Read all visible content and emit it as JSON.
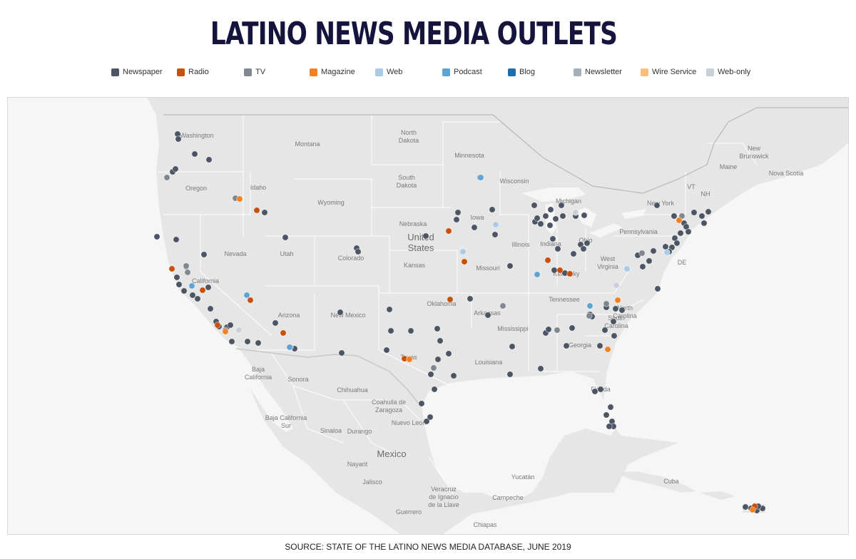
{
  "title": "LATINO NEWS MEDIA OUTLETS",
  "source": "SOURCE: STATE OF THE LATINO NEWS MEDIA DATABASE, JUNE 2019",
  "legend": [
    {
      "label": "Newspaper",
      "color": "#4c5563"
    },
    {
      "label": "Radio",
      "color": "#c8500a"
    },
    {
      "label": "TV",
      "color": "#7f8791"
    },
    {
      "label": "Magazine",
      "color": "#f48120"
    },
    {
      "label": "Web",
      "color": "#a9cbe6"
    },
    {
      "label": "Podcast",
      "color": "#5da4d4"
    },
    {
      "label": "Blog",
      "color": "#1f6eab"
    },
    {
      "label": "Newsletter",
      "color": "#a4afb9"
    },
    {
      "label": "Wire Service",
      "color": "#fcbd7d"
    },
    {
      "label": "Web-only",
      "color": "#c9d0d8"
    }
  ],
  "map_labels": {
    "states": [
      "Washington",
      "Oregon",
      "Idaho",
      "Montana",
      "North Dakota",
      "Minnesota",
      "Wisconsin",
      "South Dakota",
      "Wyoming",
      "Nevada",
      "Utah",
      "Colorado",
      "Nebraska",
      "Iowa",
      "Illinois",
      "Indiana",
      "Ohio",
      "Michigan",
      "New York",
      "Pennsylvania",
      "California",
      "Kansas",
      "Missouri",
      "West Virginia",
      "Arizona",
      "New Mexico",
      "Oklahoma",
      "Arkansas",
      "Tennessee",
      "Kentucky",
      "North Carolina",
      "South Carolina",
      "Georgia",
      "Mississippi",
      "Texas",
      "Louisiana",
      "Florida",
      "Maine",
      "VT",
      "NH",
      "New Brunswick",
      "Nova Scotia",
      "DE"
    ],
    "countries": [
      "United States",
      "Mexico"
    ],
    "mexico": [
      "Baja California",
      "Sonora",
      "Chihuahua",
      "Coahuila de Zaragoza",
      "Baja California Sur",
      "Sinaloa",
      "Durango",
      "Nuevo León",
      "Nayarit",
      "Jalisco",
      "Veracruz de Ignacio de la Llave",
      "Yucatán",
      "Campeche",
      "Guerrero",
      "Chiapas",
      "Cuba"
    ]
  },
  "outlets": [
    {
      "t": "Newspaper",
      "p": [
        [
          248,
          187
        ],
        [
          249,
          194
        ],
        [
          272,
          215
        ],
        [
          292,
          223
        ],
        [
          241,
          240
        ],
        [
          245,
          236
        ],
        [
          219,
          331
        ],
        [
          246,
          335
        ],
        [
          285,
          356
        ],
        [
          260,
          373
        ],
        [
          247,
          388
        ],
        [
          250,
          398
        ],
        [
          257,
          407
        ],
        [
          269,
          413
        ],
        [
          276,
          418
        ],
        [
          291,
          402
        ],
        [
          294,
          432
        ],
        [
          302,
          450
        ],
        [
          306,
          457
        ],
        [
          317,
          458
        ],
        [
          322,
          455
        ],
        [
          324,
          478
        ],
        [
          346,
          478
        ],
        [
          361,
          480
        ],
        [
          385,
          452
        ],
        [
          412,
          488
        ],
        [
          370,
          297
        ],
        [
          399,
          332
        ],
        [
          499,
          347
        ],
        [
          501,
          352
        ],
        [
          476,
          437
        ],
        [
          478,
          494
        ],
        [
          545,
          433
        ],
        [
          547,
          463
        ],
        [
          541,
          490
        ],
        [
          575,
          463
        ],
        [
          596,
          330
        ],
        [
          612,
          460
        ],
        [
          616,
          477
        ],
        [
          613,
          503
        ],
        [
          603,
          524
        ],
        [
          608,
          545
        ],
        [
          628,
          495
        ],
        [
          635,
          526
        ],
        [
          590,
          565
        ],
        [
          597,
          590
        ],
        [
          602,
          584
        ],
        [
          641,
          297
        ],
        [
          639,
          307
        ],
        [
          664,
          318
        ],
        [
          672,
          248
        ],
        [
          689,
          293
        ],
        [
          693,
          328
        ],
        [
          714,
          372
        ],
        [
          658,
          418
        ],
        [
          683,
          441
        ],
        [
          717,
          485
        ],
        [
          714,
          524
        ],
        [
          748,
          287
        ],
        [
          749,
          310
        ],
        [
          752,
          305
        ],
        [
          764,
          302
        ],
        [
          771,
          293
        ],
        [
          778,
          306
        ],
        [
          786,
          287
        ],
        [
          788,
          302
        ],
        [
          806,
          302
        ],
        [
          818,
          301
        ],
        [
          757,
          313
        ],
        [
          770,
          315
        ],
        [
          774,
          334
        ],
        [
          781,
          348
        ],
        [
          803,
          355
        ],
        [
          813,
          342
        ],
        [
          817,
          348
        ],
        [
          822,
          340
        ],
        [
          776,
          378
        ],
        [
          791,
          382
        ],
        [
          764,
          466
        ],
        [
          768,
          461
        ],
        [
          757,
          516
        ],
        [
          793,
          484
        ],
        [
          801,
          459
        ],
        [
          826,
          440
        ],
        [
          829,
          443
        ],
        [
          847,
          462
        ],
        [
          849,
          430
        ],
        [
          862,
          432
        ],
        [
          871,
          434
        ],
        [
          833,
          548
        ],
        [
          841,
          545
        ],
        [
          849,
          581
        ],
        [
          857,
          590
        ],
        [
          859,
          597
        ],
        [
          853,
          597
        ],
        [
          855,
          570
        ],
        [
          840,
          484
        ],
        [
          860,
          470
        ],
        [
          859,
          450
        ],
        [
          921,
          404
        ],
        [
          920,
          287
        ],
        [
          944,
          302
        ],
        [
          945,
          333
        ],
        [
          932,
          345
        ],
        [
          958,
          312
        ],
        [
          961,
          317
        ],
        [
          964,
          324
        ],
        [
          953,
          326
        ],
        [
          948,
          340
        ],
        [
          941,
          346
        ],
        [
          915,
          351
        ],
        [
          909,
          365
        ],
        [
          900,
          373
        ],
        [
          893,
          357
        ],
        [
          937,
          352
        ],
        [
          972,
          297
        ],
        [
          983,
          302
        ],
        [
          992,
          296
        ],
        [
          986,
          312
        ],
        [
          1044,
          710
        ],
        [
          1052,
          712
        ],
        [
          1060,
          715
        ],
        [
          1068,
          712
        ],
        [
          1062,
          709
        ]
      ]
    },
    {
      "t": "Radio",
      "p": [
        [
          240,
          376
        ],
        [
          283,
          406
        ],
        [
          304,
          455
        ],
        [
          359,
          294
        ],
        [
          350,
          420
        ],
        [
          396,
          466
        ],
        [
          628,
          323
        ],
        [
          650,
          366
        ],
        [
          630,
          419
        ],
        [
          566,
          502
        ],
        [
          767,
          364
        ],
        [
          784,
          378
        ],
        [
          798,
          383
        ],
        [
          1057,
          709
        ]
      ]
    },
    {
      "t": "TV",
      "p": [
        [
          233,
          248
        ],
        [
          260,
          372
        ],
        [
          262,
          381
        ],
        [
          329,
          277
        ],
        [
          315,
          462
        ],
        [
          406,
          486
        ],
        [
          607,
          515
        ],
        [
          704,
          428
        ],
        [
          780,
          462
        ],
        [
          825,
          442
        ],
        [
          899,
          354
        ],
        [
          849,
          425
        ],
        [
          955,
          302
        ]
      ]
    },
    {
      "t": "Magazine",
      "p": [
        [
          335,
          278
        ],
        [
          315,
          464
        ],
        [
          573,
          503
        ],
        [
          865,
          420
        ],
        [
          851,
          489
        ],
        [
          951,
          308
        ],
        [
          1054,
          714
        ]
      ]
    },
    {
      "t": "Web",
      "p": [
        [
          878,
          376
        ],
        [
          694,
          314
        ],
        [
          648,
          352
        ],
        [
          934,
          353
        ]
      ]
    },
    {
      "t": "Podcast",
      "p": [
        [
          268,
          400
        ],
        [
          345,
          413
        ],
        [
          405,
          486
        ],
        [
          752,
          384
        ],
        [
          826,
          428
        ],
        [
          673,
          248
        ]
      ]
    },
    {
      "t": "Web-only",
      "p": [
        [
          863,
          399
        ],
        [
          806,
          297
        ],
        [
          334,
          462
        ]
      ]
    }
  ]
}
